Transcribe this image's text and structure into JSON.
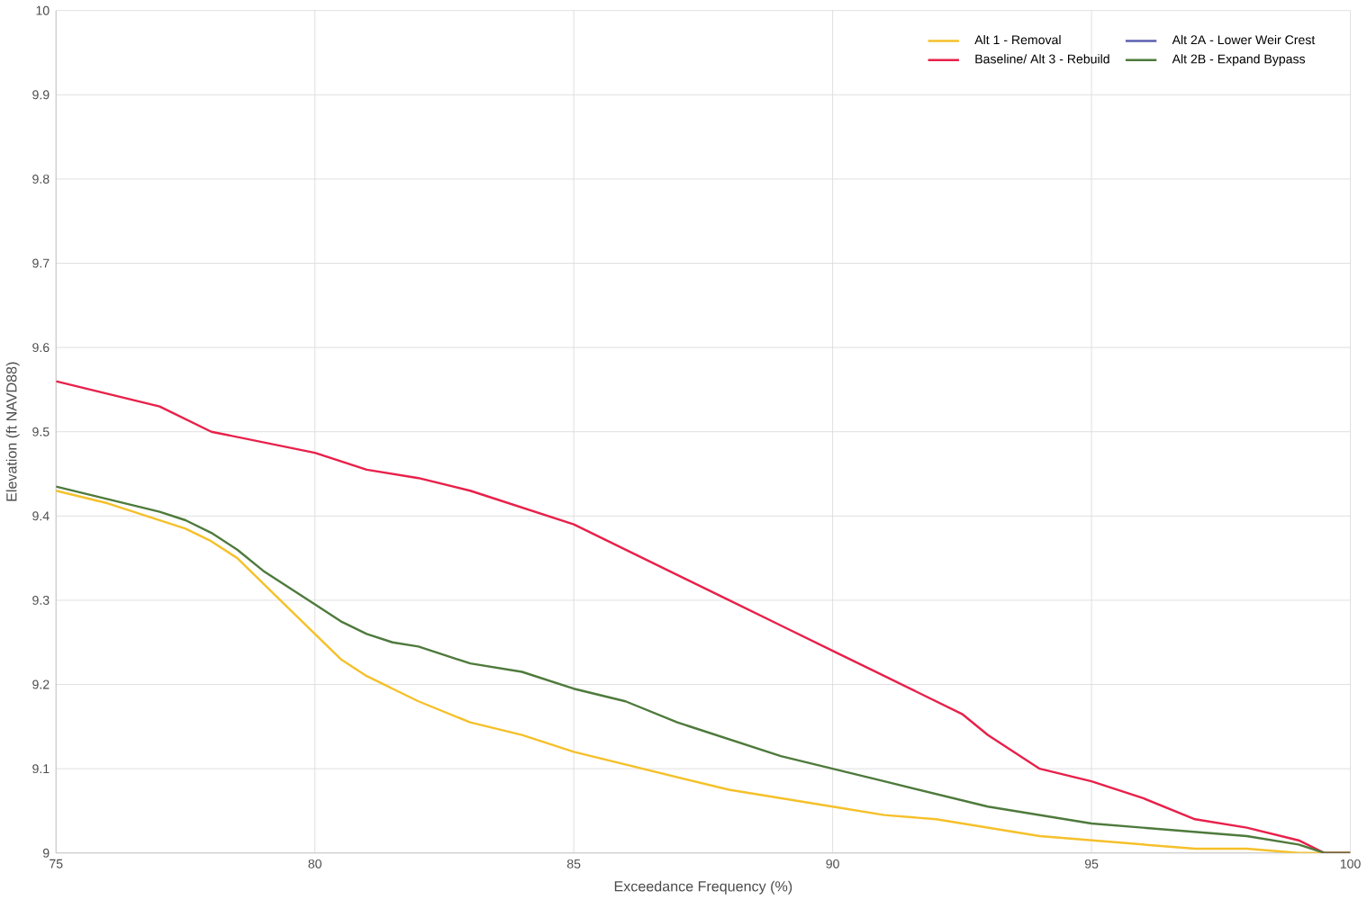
{
  "chart_data": {
    "type": "line",
    "xlabel": "Exceedance Frequency (%)",
    "ylabel": "Elevation (ft NAVD88)",
    "xlim": [
      75,
      100
    ],
    "xticks": [
      75,
      80,
      85,
      90,
      95,
      100
    ],
    "ylim": [
      9,
      10
    ],
    "yticks": [
      9,
      9.1,
      9.2,
      9.3,
      9.4,
      9.5,
      9.6,
      9.7,
      9.8,
      9.9,
      10
    ],
    "grid": true,
    "legend": "top right",
    "marker": "none",
    "series": [
      {
        "name": "Alt 1 - Removal",
        "color": "#f5c02a",
        "x": [
          75,
          76,
          77,
          77.5,
          78,
          78.5,
          79,
          79.5,
          80,
          80.5,
          81,
          81.5,
          82,
          83,
          84,
          85,
          86,
          87,
          88,
          89,
          90,
          91,
          92,
          93,
          94,
          95,
          96,
          97,
          98,
          99,
          100
        ],
        "values": [
          9.43,
          9.415,
          9.395,
          9.385,
          9.37,
          9.35,
          9.32,
          9.29,
          9.26,
          9.23,
          9.21,
          9.195,
          9.18,
          9.155,
          9.14,
          9.12,
          9.105,
          9.09,
          9.075,
          9.065,
          9.055,
          9.045,
          9.04,
          9.03,
          9.02,
          9.015,
          9.01,
          9.005,
          9.005,
          9.0,
          9.0
        ]
      },
      {
        "name": "Alt 2A - Lower Weir Crest",
        "color": "#5b5fb0",
        "values": [
          null
        ]
      },
      {
        "name": "Baseline/ Alt 3 - Rebuild",
        "color": "#e8204a",
        "x": [
          75,
          77,
          78,
          80,
          81,
          82,
          83,
          84,
          85,
          86,
          87,
          88,
          89,
          90,
          91,
          92,
          92.5,
          93,
          94,
          95,
          96,
          97,
          98,
          99,
          99.5,
          100
        ],
        "values": [
          9.56,
          9.53,
          9.5,
          9.475,
          9.455,
          9.445,
          9.43,
          9.41,
          9.39,
          9.36,
          9.33,
          9.3,
          9.27,
          9.24,
          9.21,
          9.18,
          9.165,
          9.14,
          9.1,
          9.085,
          9.065,
          9.04,
          9.03,
          9.015,
          9.0,
          9.0
        ]
      },
      {
        "name": "Alt 2B - Expand Bypass",
        "color": "#4e7a3c",
        "x": [
          75,
          76,
          77,
          77.5,
          78,
          78.5,
          79,
          80,
          80.5,
          81,
          81.5,
          82,
          83,
          84,
          85,
          86,
          87,
          88,
          89,
          90,
          91,
          92,
          93,
          94,
          95,
          96,
          97,
          98,
          99,
          99.5,
          100
        ],
        "values": [
          9.435,
          9.42,
          9.405,
          9.395,
          9.38,
          9.36,
          9.335,
          9.295,
          9.275,
          9.26,
          9.25,
          9.245,
          9.225,
          9.215,
          9.195,
          9.18,
          9.155,
          9.135,
          9.115,
          9.1,
          9.085,
          9.07,
          9.055,
          9.045,
          9.035,
          9.03,
          9.025,
          9.02,
          9.01,
          9.0,
          9.0
        ]
      }
    ]
  }
}
